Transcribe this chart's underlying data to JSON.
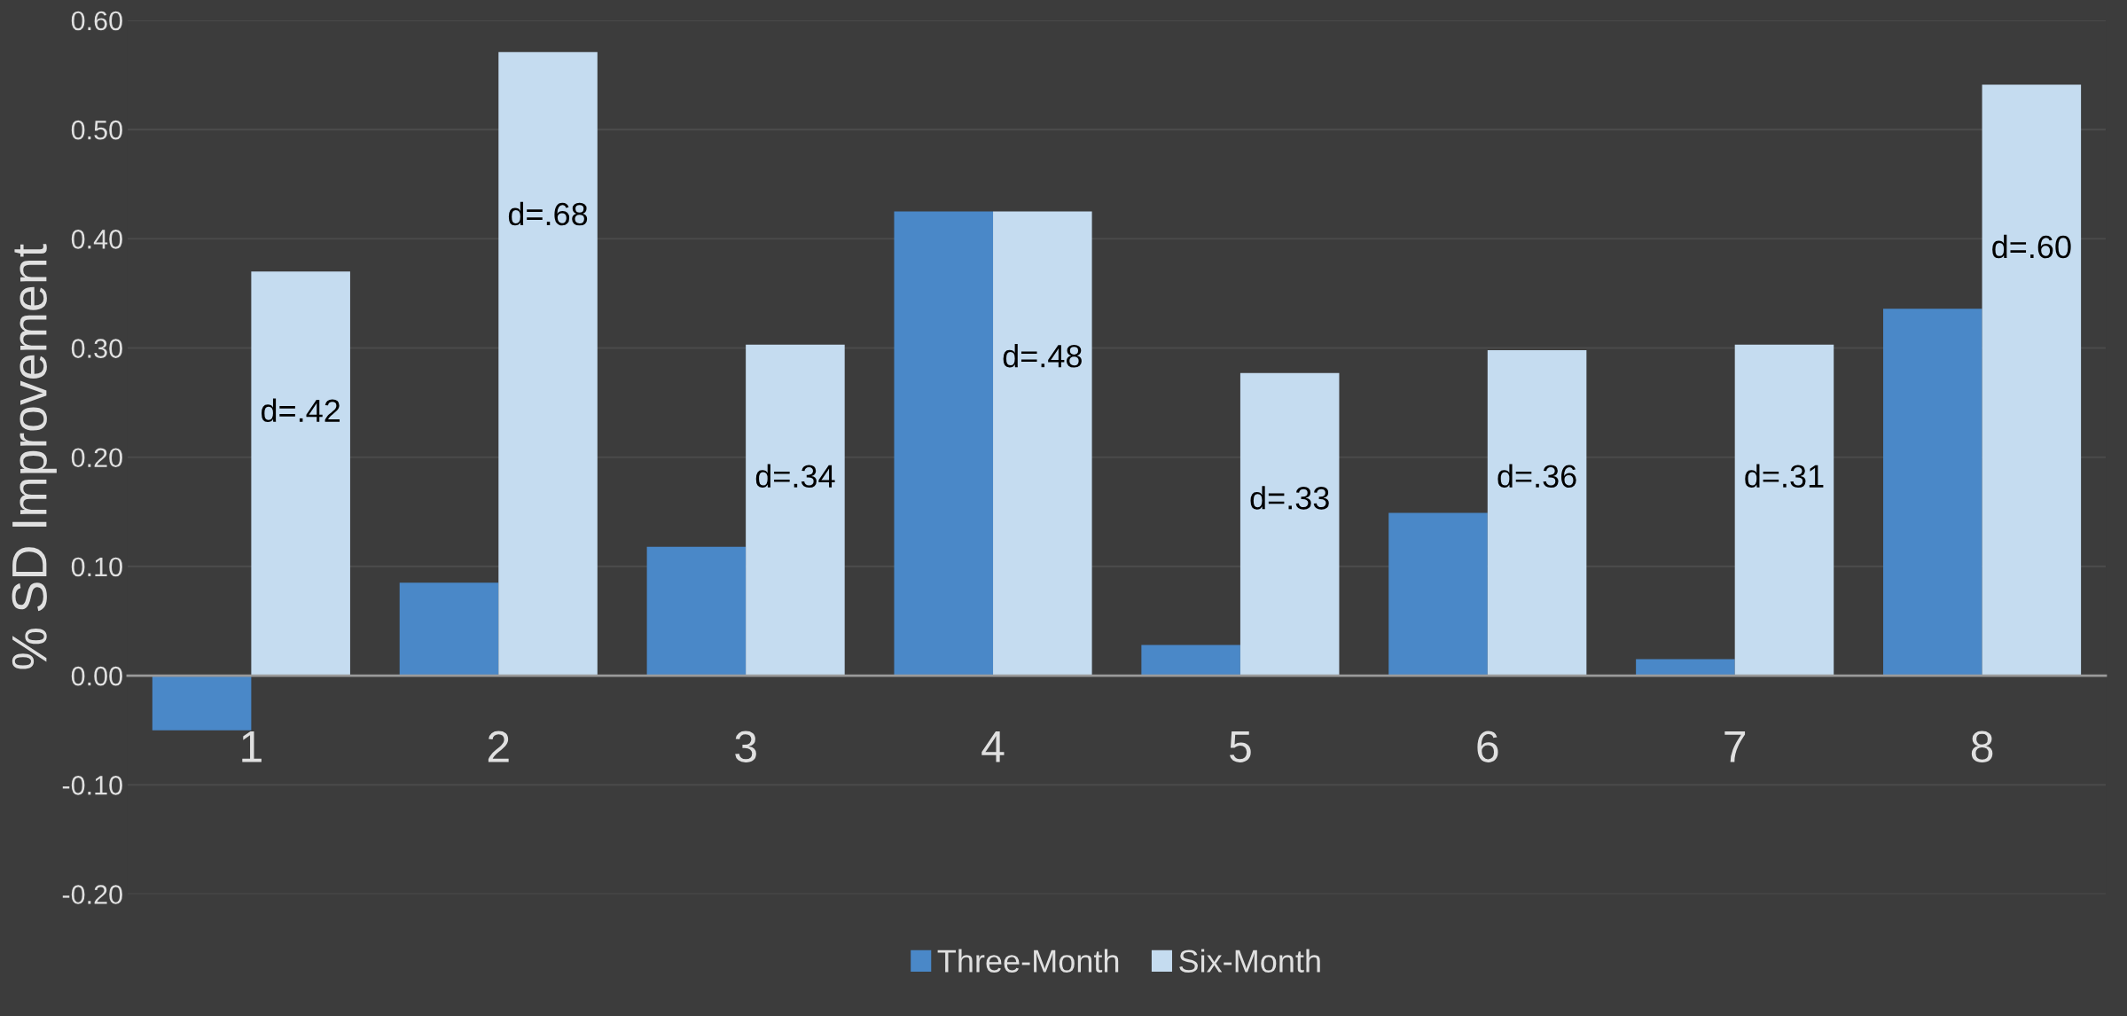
{
  "chart_data": {
    "type": "bar",
    "ylabel": "% SD Improvement",
    "categories": [
      "1",
      "2",
      "3",
      "4",
      "5",
      "6",
      "7",
      "8"
    ],
    "series": [
      {
        "name": "Three-Month",
        "color": "#4a88c8",
        "values": [
          -0.05,
          0.085,
          0.118,
          0.425,
          0.028,
          0.149,
          0.015,
          0.336
        ]
      },
      {
        "name": "Six-Month",
        "color": "#c5dcf0",
        "values": [
          0.37,
          0.571,
          0.303,
          0.425,
          0.277,
          0.298,
          0.303,
          0.541
        ]
      }
    ],
    "ylim": [
      -0.2,
      0.6
    ],
    "yticks": [
      {
        "value": -0.2,
        "label": "-0.20"
      },
      {
        "value": -0.1,
        "label": "-0.10"
      },
      {
        "value": 0,
        "label": "0.00"
      },
      {
        "value": 0.1,
        "label": "0.10"
      },
      {
        "value": 0.2,
        "label": "0.20"
      },
      {
        "value": 0.3,
        "label": "0.30"
      },
      {
        "value": 0.4,
        "label": "0.40"
      },
      {
        "value": 0.5,
        "label": "0.50"
      },
      {
        "value": 0.6,
        "label": "0.60"
      }
    ],
    "grid": "y",
    "legend": "bottom",
    "annotations": [
      {
        "text": "d=.42",
        "x": "1",
        "y": 0.24
      },
      {
        "text": "d=.68",
        "x": "2",
        "y": 0.42
      },
      {
        "text": "d=.34",
        "x": "3",
        "y": 0.18
      },
      {
        "text": "d=.48",
        "x": "4",
        "y": 0.29
      },
      {
        "text": "d=.33",
        "x": "5",
        "y": 0.16
      },
      {
        "text": "d=.36",
        "x": "6",
        "y": 0.18
      },
      {
        "text": "d=.31",
        "x": "7",
        "y": 0.18
      },
      {
        "text": "d=.60",
        "x": "8",
        "y": 0.39
      }
    ]
  }
}
